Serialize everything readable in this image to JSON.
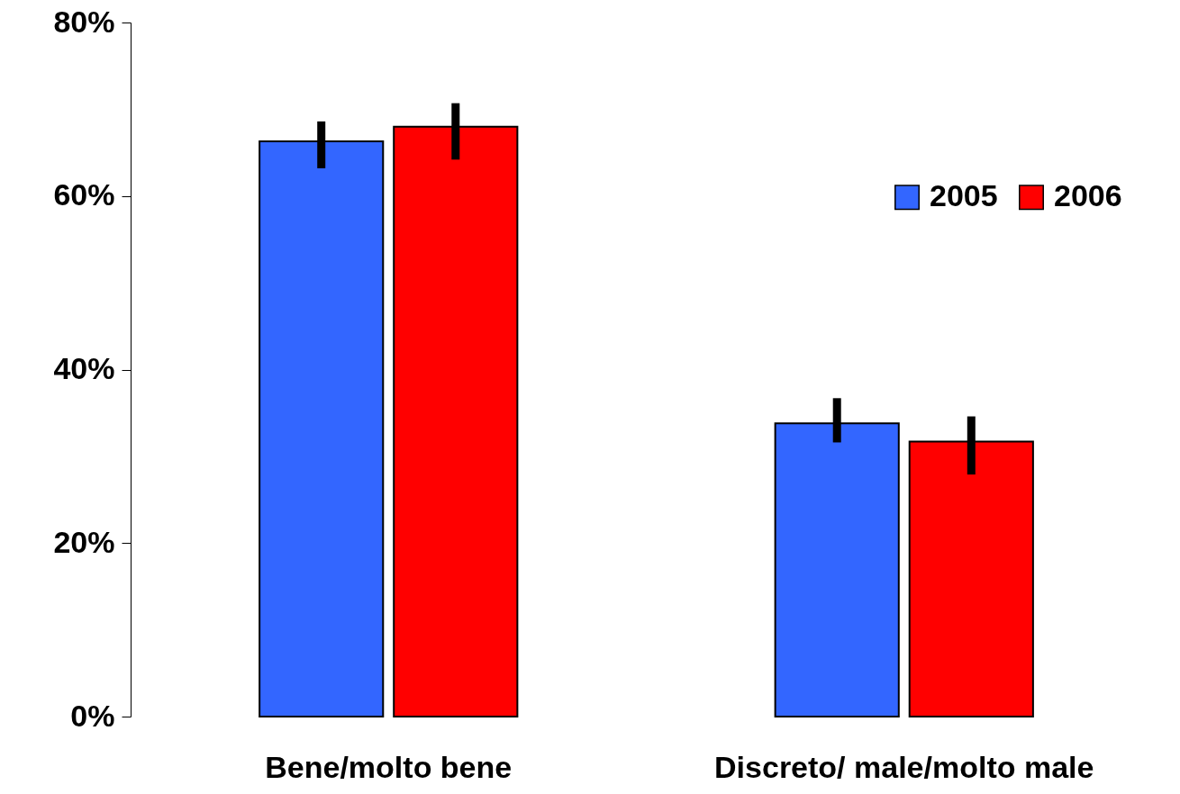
{
  "chart_data": {
    "type": "bar",
    "categories": [
      "Bene/molto bene",
      "Discreto/ male/molto male"
    ],
    "series": [
      {
        "name": "2005",
        "color": "#3366ff",
        "values": [
          66.3,
          33.8
        ],
        "errors": [
          [
            63.2,
            68.6
          ],
          [
            31.6,
            36.7
          ]
        ]
      },
      {
        "name": "2006",
        "color": "#ff0000",
        "values": [
          68,
          31.7
        ],
        "errors": [
          [
            64.2,
            70.7
          ],
          [
            27.9,
            34.6
          ]
        ]
      }
    ],
    "ylim": [
      0,
      80
    ],
    "yticks": [
      {
        "value": 0,
        "label": "0%"
      },
      {
        "value": 20,
        "label": "20%"
      },
      {
        "value": 40,
        "label": "40%"
      },
      {
        "value": 60,
        "label": "60%"
      },
      {
        "value": 80,
        "label": "80%"
      }
    ],
    "grid": false,
    "legend": "right"
  }
}
